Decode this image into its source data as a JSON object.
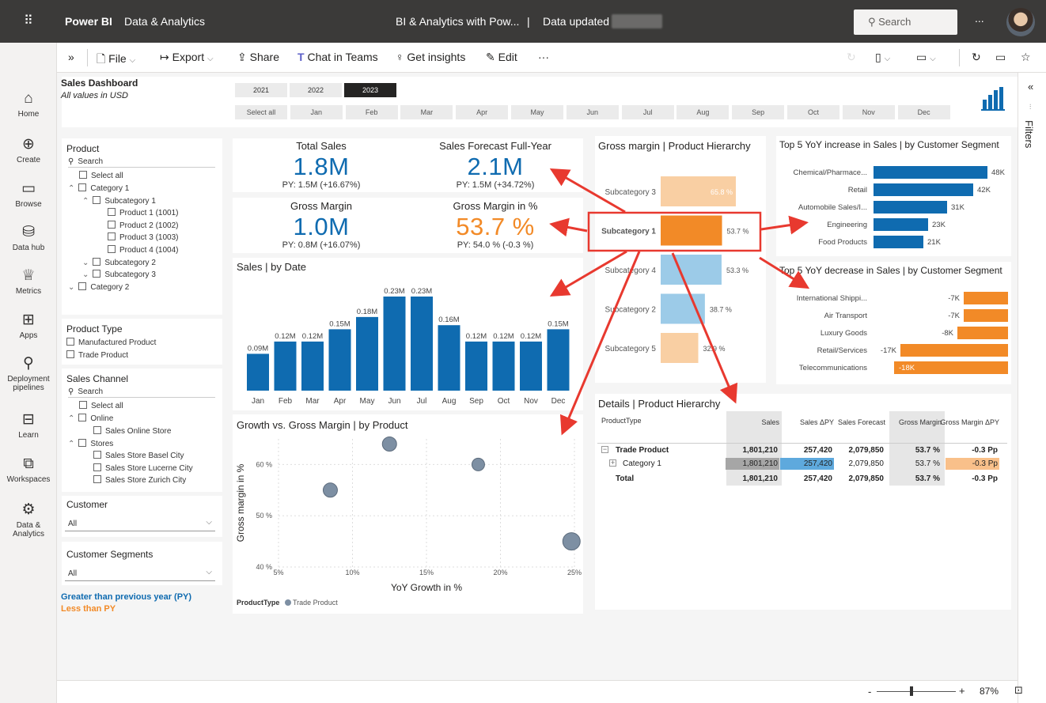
{
  "topbar": {
    "app": "Power BI",
    "workspace": "Data & Analytics",
    "report": "BI & Analytics with Pow...",
    "separator": "|",
    "updated_label": "Data updated",
    "search_placeholder": "Search",
    "more": "..."
  },
  "leftnav": [
    {
      "label": "Home",
      "icon": "home-icon"
    },
    {
      "label": "Create",
      "icon": "plus-icon"
    },
    {
      "label": "Browse",
      "icon": "folder-icon"
    },
    {
      "label": "Data hub",
      "icon": "database-icon"
    },
    {
      "label": "Metrics",
      "icon": "trophy-icon"
    },
    {
      "label": "Apps",
      "icon": "apps-icon"
    },
    {
      "label": "Deployment pipelines",
      "icon": "rocket-icon"
    },
    {
      "label": "Learn",
      "icon": "book-icon"
    },
    {
      "label": "Workspaces",
      "icon": "workspaces-icon"
    },
    {
      "label": "Data & Analytics",
      "icon": "workspace-icon"
    }
  ],
  "cmdbar": {
    "expand": "»",
    "file": "File",
    "export": "Export",
    "share": "Share",
    "teams": "Chat in Teams",
    "insights": "Get insights",
    "edit": "Edit",
    "more": "···"
  },
  "header": {
    "title": "Sales Dashboard",
    "subtitle": "All values in USD",
    "years": [
      "2021",
      "2022",
      "2023"
    ],
    "selected_year": "2023",
    "months": [
      "Select all",
      "Jan",
      "Feb",
      "Mar",
      "Apr",
      "May",
      "Jun",
      "Jul",
      "Aug",
      "Sep",
      "Oct",
      "Nov",
      "Dec"
    ]
  },
  "slicers": {
    "product": {
      "title": "Product",
      "search": "Search",
      "items": [
        "Select all",
        "Category 1",
        "Subcategory 1",
        "Product 1 (1001)",
        "Product 2 (1002)",
        "Product 3 (1003)",
        "Product 4 (1004)",
        "Subcategory 2",
        "Subcategory 3",
        "Category 2"
      ]
    },
    "product_type": {
      "title": "Product Type",
      "items": [
        "Manufactured Product",
        "Trade Product"
      ]
    },
    "sales_channel": {
      "title": "Sales Channel",
      "search": "Search",
      "items": [
        "Select all",
        "Online",
        "Sales Online Store",
        "Stores",
        "Sales Store Basel City",
        "Sales Store Lucerne City",
        "Sales Store Zurich City"
      ]
    },
    "customer": {
      "title": "Customer",
      "value": "All"
    },
    "customer_segments": {
      "title": "Customer Segments",
      "value": "All"
    }
  },
  "legend_note": {
    "greater": "Greater than previous year (PY)",
    "less": "Less than PY",
    "greater_color": "#0f6bb0",
    "less_color": "#f28a27"
  },
  "kpis": [
    {
      "title": "Total Sales",
      "value": "1.8M",
      "sub": "PY: 1.5M (+16.67%)",
      "color": "#0f6bb0"
    },
    {
      "title": "Sales Forecast Full-Year",
      "value": "2.1M",
      "sub": "PY: 1.5M (+34.72%)",
      "color": "#0f6bb0"
    },
    {
      "title": "Gross Margin",
      "value": "1.0M",
      "sub": "PY: 0.8M (+16.07%)",
      "color": "#0f6bb0"
    },
    {
      "title": "Gross Margin in %",
      "value": "53.7 %",
      "sub": "PY: 54.0 % (-0.3 %)",
      "color": "#f28a27"
    }
  ],
  "chart_data": [
    {
      "type": "bar",
      "title": "Sales | by Date",
      "categories": [
        "Jan",
        "Feb",
        "Mar",
        "Apr",
        "May",
        "Jun",
        "Jul",
        "Aug",
        "Sep",
        "Oct",
        "Nov",
        "Dec"
      ],
      "values": [
        0.09,
        0.12,
        0.12,
        0.15,
        0.18,
        0.23,
        0.23,
        0.16,
        0.12,
        0.12,
        0.12,
        0.15
      ],
      "labels": [
        "0.09M",
        "0.12M",
        "0.12M",
        "0.15M",
        "0.18M",
        "0.23M",
        "0.23M",
        "0.16M",
        "0.12M",
        "0.12M",
        "0.12M",
        "0.15M"
      ],
      "color": "#0f6bb0"
    },
    {
      "type": "bar",
      "title": "Gross margin | Product Hierarchy",
      "categories": [
        "Subcategory 3",
        "Subcategory 1",
        "Subcategory 4",
        "Subcategory 2",
        "Subcategory 5"
      ],
      "values": [
        65.8,
        53.7,
        53.3,
        38.7,
        32.9
      ],
      "labels": [
        "65.8 %",
        "53.7 %",
        "53.3 %",
        "38.7 %",
        "32.9 %"
      ],
      "colors": [
        "#f9cfa3",
        "#f28a27",
        "#9ccbe8",
        "#9ccbe8",
        "#f9cfa3"
      ],
      "highlighted": "Subcategory 1"
    },
    {
      "type": "bar",
      "title": "Top 5 YoY increase in Sales | by Customer Segment",
      "categories": [
        "Chemical/Pharmace...",
        "Retail",
        "Automobile Sales/I...",
        "Engineering",
        "Food Products"
      ],
      "values": [
        48,
        42,
        31,
        23,
        21
      ],
      "labels": [
        "48K",
        "42K",
        "31K",
        "23K",
        "21K"
      ],
      "color": "#0f6bb0"
    },
    {
      "type": "bar",
      "title": "Top 5 YoY decrease in Sales | by Customer Segment",
      "categories": [
        "International Shippi...",
        "Air Transport",
        "Luxury Goods",
        "Retail/Services",
        "Telecommunications"
      ],
      "values": [
        -7,
        -7,
        -8,
        -17,
        -18
      ],
      "labels": [
        "-7K",
        "-7K",
        "-8K",
        "-17K",
        "-18K"
      ],
      "color": "#f28a27"
    },
    {
      "type": "scatter",
      "title": "Growth vs. Gross Margin | by Product",
      "xlabel": "YoY Growth in %",
      "ylabel": "Gross margin in %",
      "xticks": [
        "5%",
        "10%",
        "15%",
        "20%",
        "25%"
      ],
      "yticks": [
        "40 %",
        "50 %",
        "60 %"
      ],
      "xlim": [
        5,
        25
      ],
      "ylim": [
        40,
        65
      ],
      "points": [
        {
          "x": 8.5,
          "y": 55,
          "size": 9
        },
        {
          "x": 12.5,
          "y": 64,
          "size": 9
        },
        {
          "x": 18.5,
          "y": 60,
          "size": 8
        },
        {
          "x": 24.8,
          "y": 45,
          "size": 11
        }
      ],
      "legend_title": "ProductType",
      "legend_item": "Trade Product",
      "color": "#7d8fa3"
    }
  ],
  "details": {
    "title": "Details | Product Hierarchy",
    "columns": [
      "ProductType",
      "Sales",
      "Sales ΔPY",
      "Sales Forecast",
      "Gross Margin",
      "Gross Margin ΔPY"
    ],
    "rows": [
      [
        "Trade Product",
        "1,801,210",
        "257,420",
        "2,079,850",
        "53.7 %",
        "-0.3 Pp"
      ],
      [
        "Category 1",
        "1,801,210",
        "257,420",
        "2,079,850",
        "53.7 %",
        "-0.3 Pp"
      ],
      [
        "Total",
        "1,801,210",
        "257,420",
        "2,079,850",
        "53.7 %",
        "-0.3 Pp"
      ]
    ]
  },
  "filters_label": "Filters",
  "status": {
    "zoom": "87%",
    "minus": "-",
    "plus": "+"
  }
}
